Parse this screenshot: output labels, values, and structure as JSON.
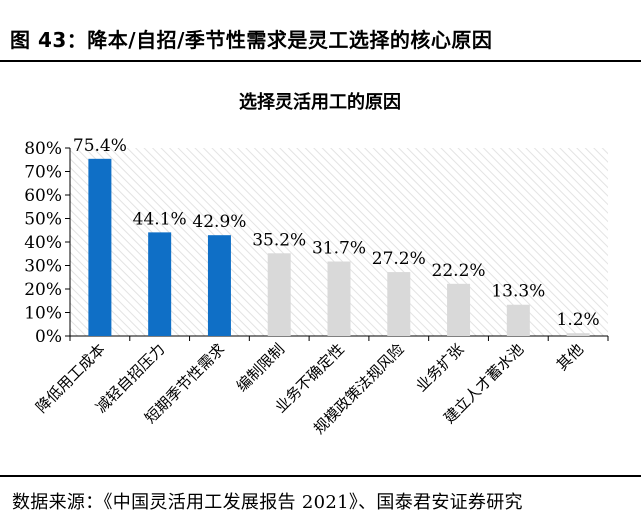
{
  "figure": {
    "title": "图 43：降本/自招/季节性需求是灵工选择的核心原因",
    "source": "数据来源：《中国灵活用工发展报告 2021》、国泰君安证券研究"
  },
  "chart_data": {
    "type": "bar",
    "title": "选择灵活用工的原因",
    "xlabel": "",
    "ylabel": "",
    "categories": [
      "降低用工成本",
      "减轻自招压力",
      "短期季节性需求",
      "编制限制",
      "业务不确定性",
      "规模政策法规风险",
      "业务扩张",
      "建立人才蓄水池",
      "其他"
    ],
    "values": [
      75.4,
      44.1,
      42.9,
      35.2,
      31.7,
      27.2,
      22.2,
      13.3,
      1.2
    ],
    "value_labels": [
      "75.4%",
      "44.1%",
      "42.9%",
      "35.2%",
      "31.7%",
      "27.2%",
      "22.2%",
      "13.3%",
      "1.2%"
    ],
    "ylim": [
      0,
      80
    ],
    "yticks": [
      0,
      10,
      20,
      30,
      40,
      50,
      60,
      70,
      80
    ],
    "ytick_labels": [
      "0%",
      "10%",
      "20%",
      "30%",
      "40%",
      "50%",
      "60%",
      "70%",
      "80%"
    ],
    "grid": false,
    "legend": "none",
    "colors": {
      "highlight": "#0f6fc6",
      "other": "#d9d9d9",
      "background_hatch": "#e6e6e6"
    },
    "highlight_count": 3
  }
}
